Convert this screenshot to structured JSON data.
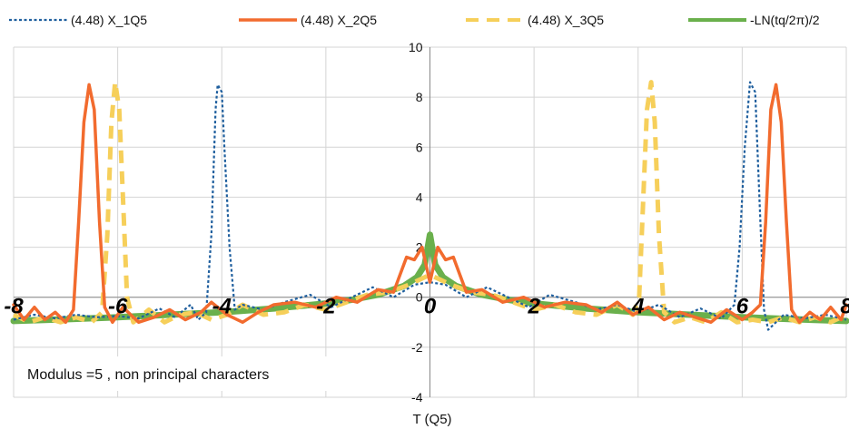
{
  "chart_data": {
    "type": "line",
    "xlabel": "T (Q5)",
    "xlim": [
      -8,
      8
    ],
    "ylim": [
      -4,
      10
    ],
    "x_ticks": [
      -8,
      -6,
      -4,
      -2,
      0,
      2,
      4,
      6,
      8
    ],
    "y_ticks": [
      -4,
      -2,
      0,
      2,
      4,
      6,
      8,
      10
    ],
    "grid": true,
    "legend_position": "top",
    "annotation": "Modulus =5 , non principal characters",
    "series": [
      {
        "name": "(4.48) X_1Q5",
        "color": "#1f5f9e",
        "style": "dotted",
        "points": [
          [
            -8,
            -0.9
          ],
          [
            -7.6,
            -0.7
          ],
          [
            -7.2,
            -0.85
          ],
          [
            -6.8,
            -0.7
          ],
          [
            -6.4,
            -0.8
          ],
          [
            -6.0,
            -0.75
          ],
          [
            -5.6,
            -0.85
          ],
          [
            -5.2,
            -0.45
          ],
          [
            -4.9,
            -0.8
          ],
          [
            -4.6,
            -0.3
          ],
          [
            -4.45,
            -0.9
          ],
          [
            -4.3,
            -0.6
          ],
          [
            -4.2,
            2.5
          ],
          [
            -4.12,
            7.5
          ],
          [
            -4.08,
            8.5
          ],
          [
            -4.0,
            8.2
          ],
          [
            -3.95,
            6.0
          ],
          [
            -3.85,
            2.0
          ],
          [
            -3.75,
            -0.5
          ],
          [
            -3.6,
            -0.3
          ],
          [
            -3.2,
            -0.5
          ],
          [
            -2.8,
            -0.2
          ],
          [
            -2.3,
            0.1
          ],
          [
            -1.9,
            -0.4
          ],
          [
            -1.5,
            0.0
          ],
          [
            -1.1,
            0.4
          ],
          [
            -0.7,
            0.0
          ],
          [
            -0.3,
            0.5
          ],
          [
            0,
            0.6
          ],
          [
            0.3,
            0.5
          ],
          [
            0.7,
            0.0
          ],
          [
            1.1,
            0.4
          ],
          [
            1.5,
            0.0
          ],
          [
            1.9,
            -0.4
          ],
          [
            2.3,
            0.1
          ],
          [
            2.8,
            -0.2
          ],
          [
            3.2,
            -0.5
          ],
          [
            3.6,
            -0.3
          ],
          [
            4.0,
            -0.6
          ],
          [
            4.4,
            -0.3
          ],
          [
            4.8,
            -0.8
          ],
          [
            5.2,
            -0.45
          ],
          [
            5.6,
            -0.85
          ],
          [
            5.85,
            -0.3
          ],
          [
            5.95,
            2.0
          ],
          [
            6.05,
            6.0
          ],
          [
            6.15,
            8.6
          ],
          [
            6.25,
            8.2
          ],
          [
            6.33,
            4.0
          ],
          [
            6.42,
            -0.5
          ],
          [
            6.5,
            -1.3
          ],
          [
            6.8,
            -0.7
          ],
          [
            7.2,
            -0.85
          ],
          [
            7.6,
            -0.7
          ],
          [
            8,
            -0.9
          ]
        ]
      },
      {
        "name": "(4.48) X_2Q5",
        "color": "#f26b2e",
        "style": "solid",
        "points": [
          [
            -8,
            -0.3
          ],
          [
            -7.8,
            -0.9
          ],
          [
            -7.6,
            -0.4
          ],
          [
            -7.4,
            -0.9
          ],
          [
            -7.2,
            -0.6
          ],
          [
            -7.0,
            -1.0
          ],
          [
            -6.85,
            -0.5
          ],
          [
            -6.75,
            3.0
          ],
          [
            -6.65,
            7.0
          ],
          [
            -6.55,
            8.5
          ],
          [
            -6.45,
            7.5
          ],
          [
            -6.35,
            3.0
          ],
          [
            -6.25,
            -0.4
          ],
          [
            -6.1,
            -1.0
          ],
          [
            -5.9,
            -0.4
          ],
          [
            -5.6,
            -1.0
          ],
          [
            -5.3,
            -0.8
          ],
          [
            -5.0,
            -0.5
          ],
          [
            -4.7,
            -0.9
          ],
          [
            -4.4,
            -0.6
          ],
          [
            -4.2,
            -0.2
          ],
          [
            -3.9,
            -0.7
          ],
          [
            -3.6,
            -1.0
          ],
          [
            -3.3,
            -0.6
          ],
          [
            -3.0,
            -0.3
          ],
          [
            -2.6,
            -0.2
          ],
          [
            -2.2,
            -0.4
          ],
          [
            -1.8,
            0.0
          ],
          [
            -1.4,
            -0.2
          ],
          [
            -1.0,
            0.3
          ],
          [
            -0.7,
            0.2
          ],
          [
            -0.45,
            1.6
          ],
          [
            -0.3,
            1.5
          ],
          [
            -0.15,
            2.0
          ],
          [
            0,
            0.6
          ],
          [
            0.15,
            2.0
          ],
          [
            0.3,
            1.5
          ],
          [
            0.45,
            1.6
          ],
          [
            0.7,
            0.2
          ],
          [
            1.0,
            0.3
          ],
          [
            1.4,
            -0.2
          ],
          [
            1.8,
            0.0
          ],
          [
            2.2,
            -0.4
          ],
          [
            2.6,
            -0.2
          ],
          [
            3.0,
            -0.3
          ],
          [
            3.3,
            -0.6
          ],
          [
            3.6,
            -0.2
          ],
          [
            3.9,
            -0.7
          ],
          [
            4.2,
            -0.4
          ],
          [
            4.5,
            -0.9
          ],
          [
            4.8,
            -0.6
          ],
          [
            5.1,
            -0.8
          ],
          [
            5.4,
            -1.0
          ],
          [
            5.7,
            -0.5
          ],
          [
            6.0,
            -0.9
          ],
          [
            6.2,
            -0.6
          ],
          [
            6.35,
            -0.3
          ],
          [
            6.45,
            3.0
          ],
          [
            6.55,
            7.5
          ],
          [
            6.65,
            8.5
          ],
          [
            6.75,
            7.0
          ],
          [
            6.85,
            3.0
          ],
          [
            6.95,
            -0.5
          ],
          [
            7.1,
            -1.0
          ],
          [
            7.3,
            -0.6
          ],
          [
            7.5,
            -0.9
          ],
          [
            7.7,
            -0.4
          ],
          [
            7.9,
            -0.9
          ],
          [
            8,
            -0.3
          ]
        ]
      },
      {
        "name": "(4.48)  X_3Q5",
        "color": "#f6cf5a",
        "style": "dashed",
        "points": [
          [
            -8,
            -0.7
          ],
          [
            -7.7,
            -1.0
          ],
          [
            -7.4,
            -0.8
          ],
          [
            -7.1,
            -1.0
          ],
          [
            -6.8,
            -0.8
          ],
          [
            -6.5,
            -1.0
          ],
          [
            -6.3,
            -0.6
          ],
          [
            -6.2,
            2.5
          ],
          [
            -6.12,
            7.0
          ],
          [
            -6.05,
            8.6
          ],
          [
            -5.97,
            7.5
          ],
          [
            -5.9,
            4.0
          ],
          [
            -5.82,
            0.0
          ],
          [
            -5.7,
            -1.0
          ],
          [
            -5.4,
            -0.5
          ],
          [
            -5.1,
            -1.0
          ],
          [
            -4.8,
            -0.7
          ],
          [
            -4.5,
            -0.6
          ],
          [
            -4.2,
            -0.9
          ],
          [
            -3.9,
            -0.7
          ],
          [
            -3.6,
            -0.3
          ],
          [
            -3.2,
            -0.7
          ],
          [
            -2.8,
            -0.6
          ],
          [
            -2.4,
            -0.3
          ],
          [
            -2.0,
            -0.5
          ],
          [
            -1.6,
            -0.2
          ],
          [
            -1.2,
            0.1
          ],
          [
            -0.8,
            0.2
          ],
          [
            -0.4,
            0.5
          ],
          [
            0,
            0.9
          ],
          [
            0.4,
            0.5
          ],
          [
            0.8,
            0.2
          ],
          [
            1.2,
            0.1
          ],
          [
            1.6,
            -0.2
          ],
          [
            2.0,
            -0.5
          ],
          [
            2.4,
            -0.3
          ],
          [
            2.8,
            -0.6
          ],
          [
            3.2,
            -0.7
          ],
          [
            3.6,
            -0.3
          ],
          [
            3.9,
            -0.7
          ],
          [
            4.02,
            0.0
          ],
          [
            4.1,
            4.0
          ],
          [
            4.17,
            7.5
          ],
          [
            4.25,
            8.6
          ],
          [
            4.32,
            7.0
          ],
          [
            4.4,
            2.5
          ],
          [
            4.5,
            -0.6
          ],
          [
            4.7,
            -1.0
          ],
          [
            5.0,
            -0.8
          ],
          [
            5.3,
            -1.0
          ],
          [
            5.6,
            -0.6
          ],
          [
            5.9,
            -1.0
          ],
          [
            6.2,
            -0.9
          ],
          [
            6.5,
            -1.0
          ],
          [
            6.8,
            -0.8
          ],
          [
            7.1,
            -1.0
          ],
          [
            7.4,
            -0.8
          ],
          [
            7.7,
            -1.0
          ],
          [
            8,
            -0.7
          ]
        ]
      },
      {
        "name": "-LN(tq/2π)/2",
        "color": "#6ab04c",
        "style": "solid-thick",
        "points": [
          [
            -8,
            -0.95
          ],
          [
            -7,
            -0.88
          ],
          [
            -6,
            -0.8
          ],
          [
            -5,
            -0.7
          ],
          [
            -4,
            -0.6
          ],
          [
            -3,
            -0.45
          ],
          [
            -2,
            -0.25
          ],
          [
            -1.5,
            -0.1
          ],
          [
            -1,
            0.1
          ],
          [
            -0.5,
            0.45
          ],
          [
            -0.25,
            0.8
          ],
          [
            -0.1,
            1.3
          ],
          [
            0,
            2.5
          ],
          [
            0.1,
            1.3
          ],
          [
            0.25,
            0.8
          ],
          [
            0.5,
            0.45
          ],
          [
            1,
            0.1
          ],
          [
            1.5,
            -0.1
          ],
          [
            2,
            -0.25
          ],
          [
            3,
            -0.45
          ],
          [
            4,
            -0.6
          ],
          [
            5,
            -0.7
          ],
          [
            6,
            -0.8
          ],
          [
            7,
            -0.88
          ],
          [
            8,
            -0.95
          ]
        ]
      }
    ]
  }
}
